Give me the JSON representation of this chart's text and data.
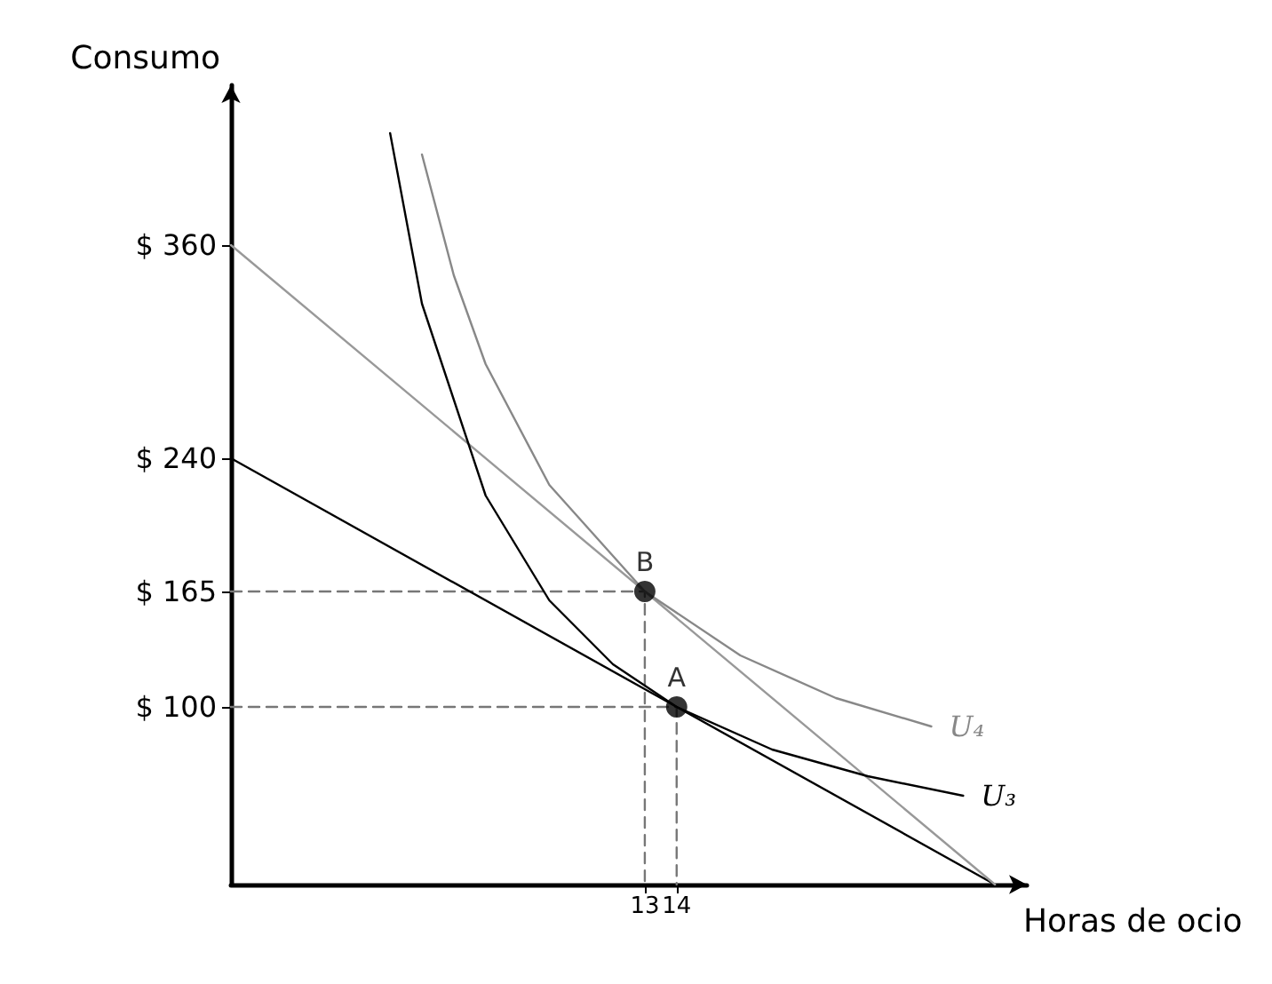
{
  "chart_data": {
    "type": "line",
    "xlabel": "Horas de ocio",
    "ylabel": "Consumo",
    "xlim": [
      0,
      25
    ],
    "ylim": [
      0,
      450
    ],
    "xticks": [
      13,
      14
    ],
    "yticks": [
      {
        "value": 100,
        "label": "$ 100"
      },
      {
        "value": 165,
        "label": "$ 165"
      },
      {
        "value": 240,
        "label": "$ 240"
      },
      {
        "value": 360,
        "label": "$ 360"
      }
    ],
    "grid": false,
    "legend": false,
    "marker": "none",
    "line_style": "solid",
    "series": [
      {
        "line_style": "dashed",
        "color": "#777777",
        "x": [
          0,
          14,
          14
        ],
        "values": [
          100,
          100,
          0
        ]
      },
      {
        "line_style": "dashed",
        "color": "#777777",
        "x": [
          0,
          13,
          13
        ],
        "values": [
          165,
          165,
          0
        ]
      },
      {
        "color": "#000000",
        "x": [
          0,
          24
        ],
        "values": [
          240,
          0
        ]
      },
      {
        "color": "#999999",
        "x": [
          0,
          24
        ],
        "values": [
          360,
          0
        ]
      },
      {
        "name": "U₃",
        "color": "#000000",
        "x": [
          5,
          6,
          8,
          10,
          12,
          14,
          17,
          20,
          23
        ],
        "values": [
          423,
          327,
          219,
          160,
          124,
          100,
          76,
          61,
          50
        ]
      },
      {
        "name": "U₄",
        "color": "#888888",
        "x": [
          6,
          7,
          8,
          10,
          13,
          16,
          19,
          22
        ],
        "values": [
          411,
          343,
          293,
          225,
          165,
          129,
          105,
          89
        ]
      },
      {
        "type": "scatter",
        "name": "A",
        "color": "#000000",
        "marker": "circle",
        "x": [
          14
        ],
        "values": [
          100
        ]
      },
      {
        "type": "scatter",
        "name": "B",
        "color": "#000000",
        "marker": "circle",
        "x": [
          13
        ],
        "values": [
          165
        ]
      }
    ]
  }
}
